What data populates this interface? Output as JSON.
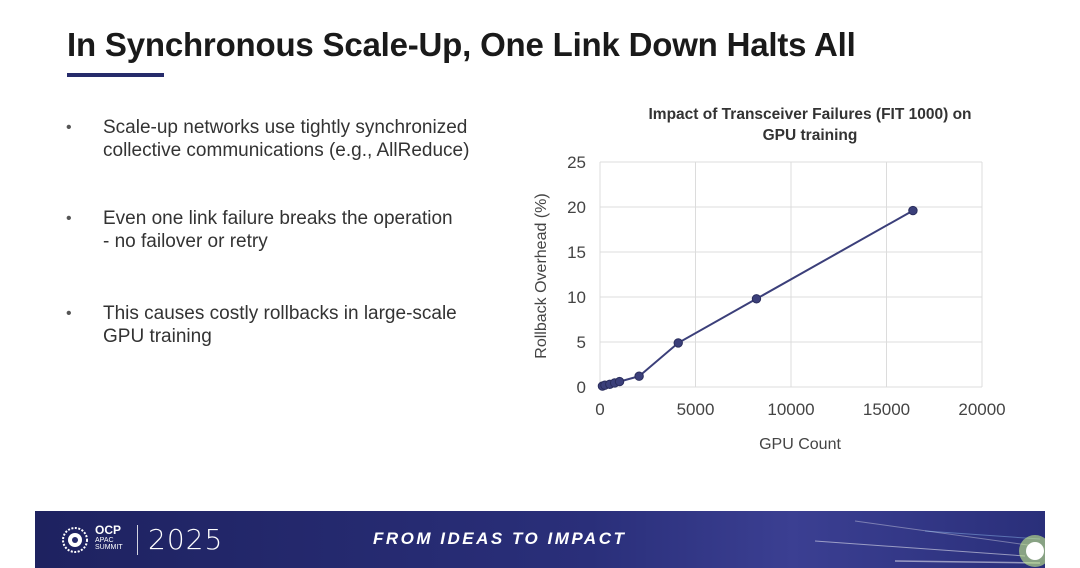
{
  "slide": {
    "title": "In Synchronous Scale-Up, One Link Down Halts All",
    "bullets": [
      {
        "line1": "Scale-up networks use tightly synchronized",
        "line2": "collective communications (e.g., AllReduce)"
      },
      {
        "line1": "Even one link failure breaks the operation",
        "line2": "- no failover or retry"
      },
      {
        "line1": "This causes costly rollbacks in large-scale",
        "line2": "GPU training"
      }
    ],
    "bullet_glyph": "•"
  },
  "chart_data": {
    "type": "scatter",
    "title_lines": [
      "Impact of Transceiver Failures (FIT 1000) on",
      "GPU training"
    ],
    "xlabel": "GPU Count",
    "ylabel": "Rollback Overhead (%)",
    "xlim": [
      0,
      20000
    ],
    "ylim": [
      0,
      25
    ],
    "xticks": [
      0,
      5000,
      10000,
      15000,
      20000
    ],
    "yticks": [
      0,
      5,
      10,
      15,
      20,
      25
    ],
    "grid": true,
    "legend": "none",
    "series": [
      {
        "x": [
          128,
          256,
          512,
          768,
          1024,
          2048,
          4096,
          8192,
          16384
        ],
        "y": [
          0.1,
          0.2,
          0.3,
          0.45,
          0.6,
          1.2,
          4.9,
          9.8,
          19.6
        ],
        "color": "#3b3f7a",
        "markers": true,
        "line": true
      }
    ]
  },
  "footer": {
    "org_main": "OCP",
    "org_sub_line1": "APAC",
    "org_sub_line2": "SUMMIT",
    "year": "2025",
    "tagline": "FROM IDEAS TO IMPACT",
    "logo_icon": "ocp-gear-icon",
    "bg_color": "#262b6b"
  }
}
